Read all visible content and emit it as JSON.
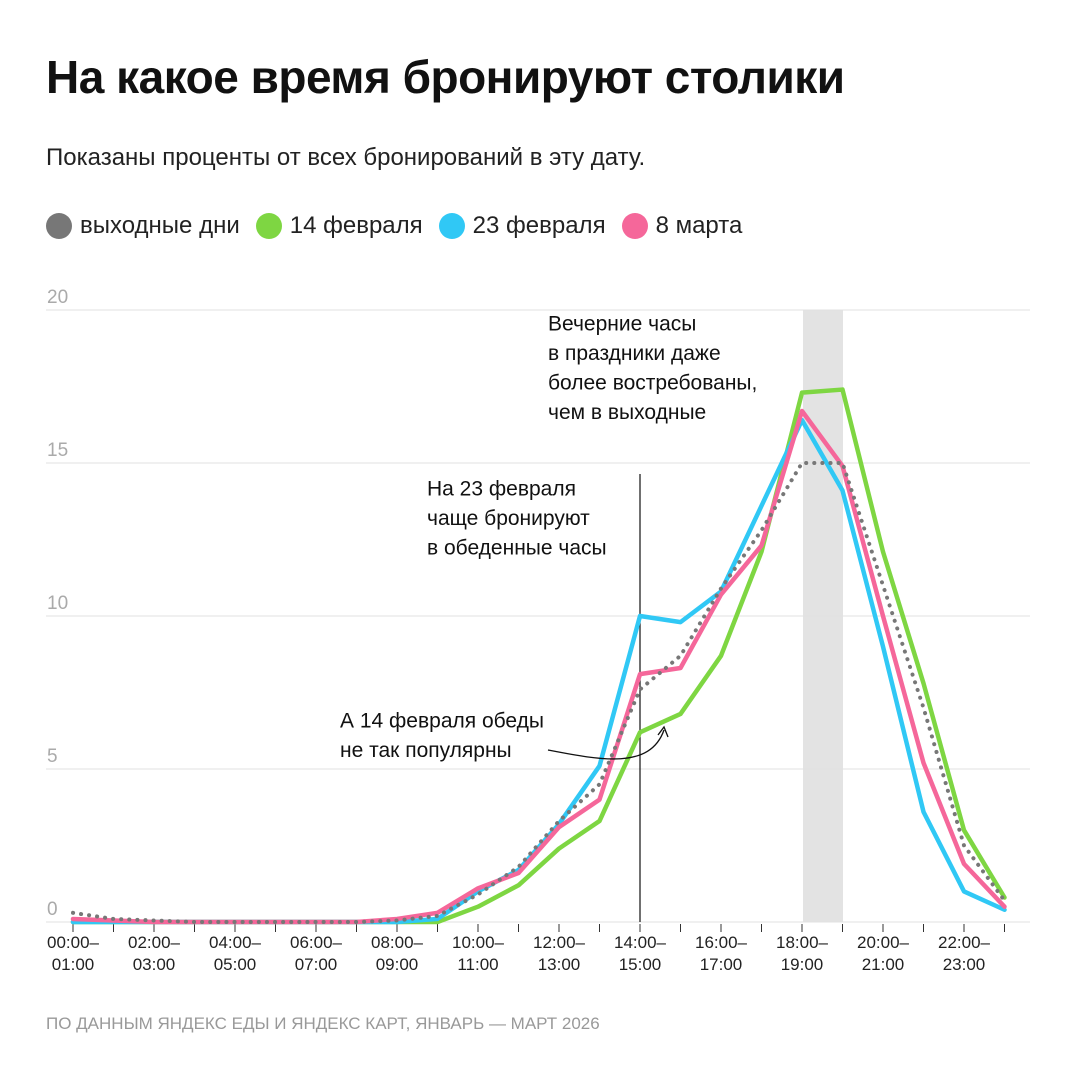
{
  "chart_data": {
    "type": "line",
    "title": "На какое время бронируют столики",
    "subtitle": "Показаны проценты от всех бронирований в эту дату.",
    "source": "ПО ДАННЫМ ЯНДЕКС ЕДЫ И ЯНДЕКС КАРТ, ЯНВАРЬ — МАРТ 2026",
    "categories": [
      "00:00–\n01:00",
      null,
      "02:00–\n03:00",
      null,
      "04:00–\n05:00",
      null,
      "06:00–\n07:00",
      null,
      "08:00–\n09:00",
      null,
      "10:00–\n11:00",
      null,
      "12:00–\n13:00",
      null,
      "14:00–\n15:00",
      null,
      "16:00–\n17:00",
      null,
      "18:00–\n19:00",
      null,
      "20:00–\n21:00",
      null,
      "22:00–\n23:00",
      null
    ],
    "ylim": [
      0,
      20
    ],
    "yticks": [
      0,
      5,
      10,
      15,
      20
    ],
    "grid": true,
    "series": [
      {
        "name": "выходные дни",
        "color": "#777777",
        "line_style": "dotted",
        "values": [
          0.3,
          0.1,
          0.05,
          0,
          0,
          0,
          0,
          0,
          0.05,
          0.2,
          0.9,
          1.8,
          3.3,
          4.5,
          7.6,
          8.7,
          10.9,
          12.8,
          15.0,
          15.0,
          11.0,
          7.0,
          2.5,
          0.7
        ]
      },
      {
        "name": "14 февраля",
        "color": "#7ed642",
        "line_style": "solid",
        "values": [
          0,
          0,
          0,
          0,
          0,
          0,
          0,
          0,
          0,
          0,
          0.5,
          1.2,
          2.4,
          3.3,
          6.2,
          6.8,
          8.7,
          12.1,
          17.3,
          17.4,
          12.1,
          7.8,
          3.0,
          0.8
        ]
      },
      {
        "name": "23 февраля",
        "color": "#30c8f5",
        "line_style": "solid",
        "values": [
          0,
          0,
          0,
          0,
          0,
          0,
          0,
          0,
          0,
          0.1,
          1.0,
          1.7,
          3.2,
          5.1,
          10.0,
          9.8,
          10.8,
          13.6,
          16.4,
          14.1,
          9.0,
          3.6,
          1.0,
          0.4
        ]
      },
      {
        "name": "8 марта",
        "color": "#f5679a",
        "line_style": "solid",
        "values": [
          0.1,
          0.05,
          0,
          0,
          0,
          0,
          0,
          0,
          0.1,
          0.3,
          1.1,
          1.6,
          3.1,
          4.0,
          8.1,
          8.3,
          10.7,
          12.3,
          16.7,
          14.9,
          10.0,
          5.2,
          1.9,
          0.5
        ]
      }
    ],
    "annotations": [
      [
        "Вечерние часы",
        "в праздники даже",
        "более востребованы,",
        "чем в выходные"
      ],
      [
        "На 23 февраля",
        "чаще бронируют",
        "в обеденные часы"
      ],
      [
        "А 14 февраля обеды",
        "не так популярны"
      ]
    ]
  }
}
